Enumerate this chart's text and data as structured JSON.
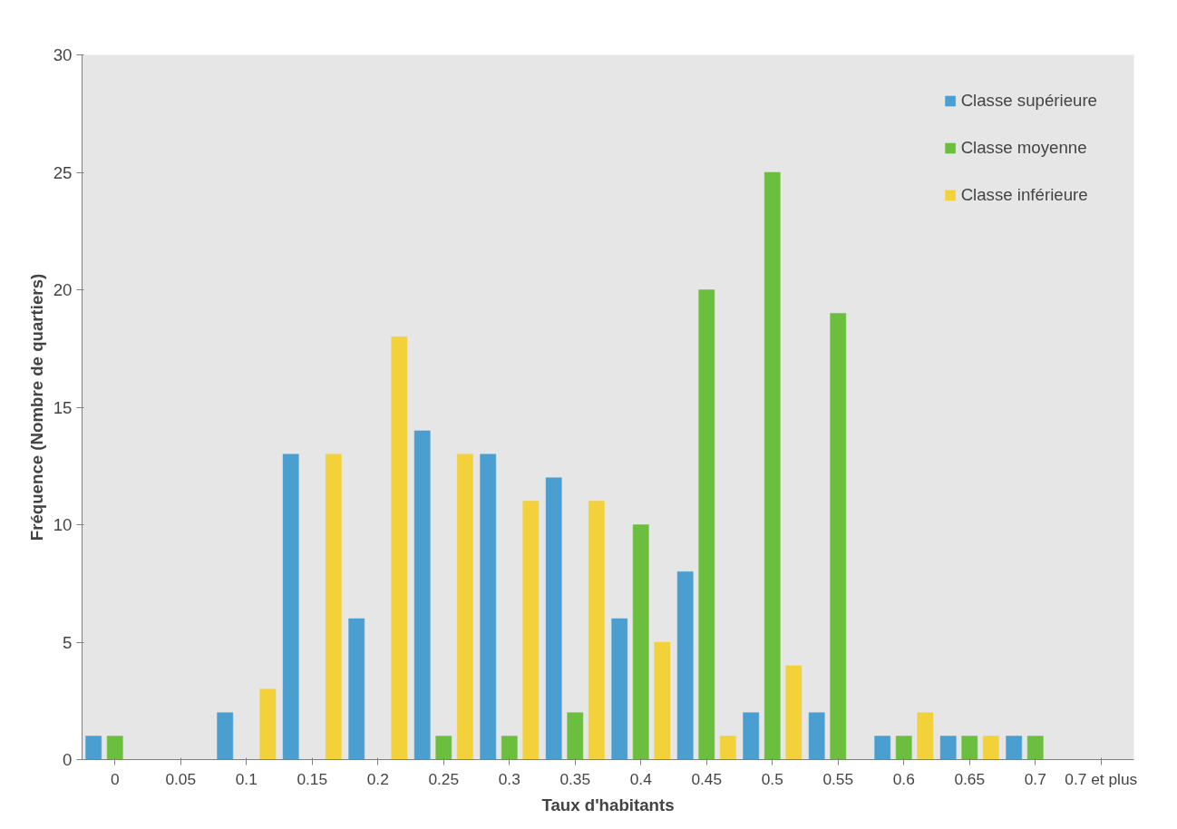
{
  "chart_data": {
    "type": "bar",
    "xlabel": "Taux d'habitants",
    "ylabel": "Fréquence (Nombre de quartiers)",
    "categories": [
      "0",
      "0.05",
      "0.1",
      "0.15",
      "0.2",
      "0.25",
      "0.3",
      "0.35",
      "0.4",
      "0.45",
      "0.5",
      "0.55",
      "0.6",
      "0.65",
      "0.7",
      "0.7 et plus"
    ],
    "series": [
      {
        "name": "Classe supérieure",
        "color": "#4a9fd0",
        "values": [
          1,
          0,
          2,
          13,
          6,
          14,
          13,
          12,
          6,
          8,
          2,
          2,
          1,
          1,
          1,
          0
        ]
      },
      {
        "name": "Classe moyenne",
        "color": "#6cbf3e",
        "values": [
          1,
          0,
          0,
          0,
          0,
          1,
          1,
          2,
          10,
          20,
          25,
          19,
          1,
          1,
          1,
          0
        ]
      },
      {
        "name": "Classe inférieure",
        "color": "#f2d13a",
        "values": [
          0,
          0,
          3,
          13,
          18,
          13,
          11,
          11,
          5,
          1,
          4,
          0,
          2,
          1,
          0,
          0
        ]
      }
    ],
    "ylim": [
      0,
      30
    ],
    "yticks": [
      0,
      5,
      10,
      15,
      20,
      25,
      30
    ],
    "legend": "top right"
  }
}
